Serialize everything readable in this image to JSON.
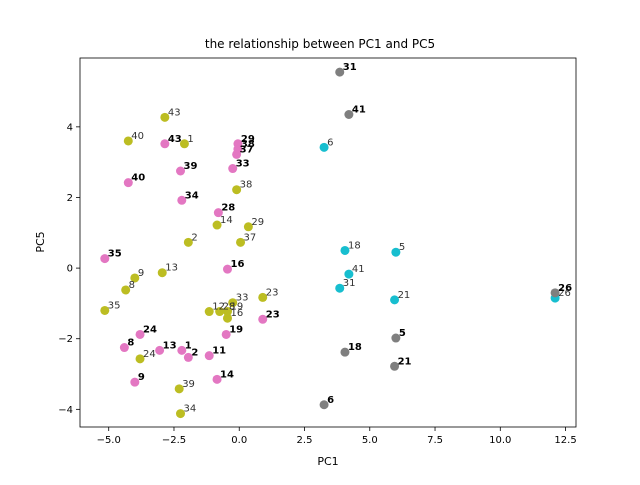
{
  "chart_data": {
    "type": "scatter",
    "title": "the relationship between PC1 and PC5",
    "xlabel": "PC1",
    "ylabel": "PC5",
    "xlim": [
      -6.1,
      12.9
    ],
    "ylim": [
      -4.5,
      5.95
    ],
    "xticks": [
      {
        "v": -5.0,
        "label": "−5.0"
      },
      {
        "v": -2.5,
        "label": "−2.5"
      },
      {
        "v": 0.0,
        "label": "0.0"
      },
      {
        "v": 2.5,
        "label": "2.5"
      },
      {
        "v": 5.0,
        "label": "5.0"
      },
      {
        "v": 7.5,
        "label": "7.5"
      },
      {
        "v": 10.0,
        "label": "10.0"
      },
      {
        "v": 12.5,
        "label": "12.5"
      }
    ],
    "yticks": [
      {
        "v": -4,
        "label": "−4"
      },
      {
        "v": -2,
        "label": "−2"
      },
      {
        "v": 0,
        "label": "0"
      },
      {
        "v": 2,
        "label": "2"
      },
      {
        "v": 4,
        "label": "4"
      }
    ],
    "grid": false,
    "legend": "none",
    "series": [
      {
        "color": "#bcbd22",
        "bold": false,
        "points": [
          {
            "x": -2.85,
            "y": 4.27,
            "label": "43"
          },
          {
            "x": -4.25,
            "y": 3.6,
            "label": "40"
          },
          {
            "x": -2.1,
            "y": 3.52,
            "label": "1"
          },
          {
            "x": -0.1,
            "y": 2.22,
            "label": "38"
          },
          {
            "x": 0.35,
            "y": 1.17,
            "label": "29"
          },
          {
            "x": -0.85,
            "y": 1.22,
            "label": "14"
          },
          {
            "x": -1.95,
            "y": 0.73,
            "label": "2"
          },
          {
            "x": 0.05,
            "y": 0.73,
            "label": "37"
          },
          {
            "x": -2.95,
            "y": -0.13,
            "label": "13"
          },
          {
            "x": -4.0,
            "y": -0.28,
            "label": "9"
          },
          {
            "x": -4.35,
            "y": -0.62,
            "label": "8"
          },
          {
            "x": -5.15,
            "y": -1.2,
            "label": "35"
          },
          {
            "x": 0.9,
            "y": -0.83,
            "label": "23"
          },
          {
            "x": -0.25,
            "y": -0.98,
            "label": "33"
          },
          {
            "x": -1.15,
            "y": -1.23,
            "label": "12"
          },
          {
            "x": -0.75,
            "y": -1.23,
            "label": "28"
          },
          {
            "x": -0.45,
            "y": -1.23,
            "label": "19"
          },
          {
            "x": -0.45,
            "y": -1.42,
            "label": "16"
          },
          {
            "x": -3.8,
            "y": -2.57,
            "label": "24"
          },
          {
            "x": -2.3,
            "y": -3.42,
            "label": "39"
          },
          {
            "x": -2.25,
            "y": -4.12,
            "label": "34"
          }
        ]
      },
      {
        "color": "#e377c2",
        "bold": true,
        "points": [
          {
            "x": -0.05,
            "y": 3.52,
            "label": "29"
          },
          {
            "x": -2.85,
            "y": 3.52,
            "label": "43"
          },
          {
            "x": -0.05,
            "y": 3.37,
            "label": "38"
          },
          {
            "x": -0.1,
            "y": 3.22,
            "label": "37"
          },
          {
            "x": -0.25,
            "y": 2.82,
            "label": "33"
          },
          {
            "x": -2.25,
            "y": 2.75,
            "label": "39"
          },
          {
            "x": -4.25,
            "y": 2.42,
            "label": "40"
          },
          {
            "x": -2.2,
            "y": 1.92,
            "label": "34"
          },
          {
            "x": -0.8,
            "y": 1.57,
            "label": "28"
          },
          {
            "x": -0.45,
            "y": -0.03,
            "label": "16"
          },
          {
            "x": -5.15,
            "y": 0.27,
            "label": "35"
          },
          {
            "x": 0.9,
            "y": -1.45,
            "label": "23"
          },
          {
            "x": -0.5,
            "y": -1.88,
            "label": "19"
          },
          {
            "x": -3.8,
            "y": -1.88,
            "label": "24"
          },
          {
            "x": -4.4,
            "y": -2.25,
            "label": "8"
          },
          {
            "x": -3.05,
            "y": -2.33,
            "label": "13"
          },
          {
            "x": -2.2,
            "y": -2.33,
            "label": "1"
          },
          {
            "x": -1.95,
            "y": -2.53,
            "label": "2"
          },
          {
            "x": -1.15,
            "y": -2.48,
            "label": "11"
          },
          {
            "x": -0.85,
            "y": -3.15,
            "label": "14"
          },
          {
            "x": -4.0,
            "y": -3.23,
            "label": "9"
          }
        ]
      },
      {
        "color": "#17becf",
        "bold": false,
        "points": [
          {
            "x": 3.25,
            "y": 3.42,
            "label": "6"
          },
          {
            "x": 4.05,
            "y": 0.5,
            "label": "18"
          },
          {
            "x": 6.0,
            "y": 0.45,
            "label": "5"
          },
          {
            "x": 4.2,
            "y": -0.17,
            "label": "41"
          },
          {
            "x": 3.85,
            "y": -0.57,
            "label": "31"
          },
          {
            "x": 5.95,
            "y": -0.9,
            "label": "21"
          },
          {
            "x": 12.1,
            "y": -0.85,
            "label": "26"
          }
        ]
      },
      {
        "color": "#7f7f7f",
        "bold": true,
        "points": [
          {
            "x": 3.85,
            "y": 5.55,
            "label": "31"
          },
          {
            "x": 4.2,
            "y": 4.35,
            "label": "41"
          },
          {
            "x": 12.1,
            "y": -0.7,
            "label": "26"
          },
          {
            "x": 6.0,
            "y": -1.98,
            "label": "5"
          },
          {
            "x": 4.05,
            "y": -2.38,
            "label": "18"
          },
          {
            "x": 5.95,
            "y": -2.78,
            "label": "21"
          },
          {
            "x": 3.25,
            "y": -3.87,
            "label": "6"
          }
        ]
      }
    ]
  }
}
